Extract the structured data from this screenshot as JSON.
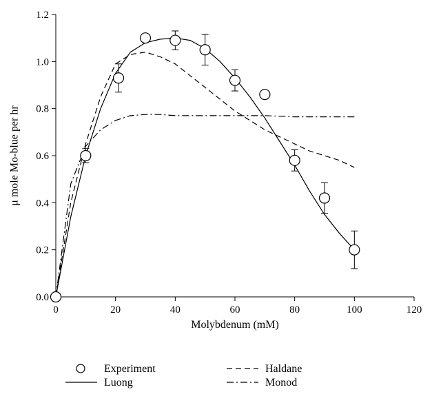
{
  "chart_data": {
    "type": "line",
    "title": "",
    "xlabel": "Molybdenum (mM)",
    "ylabel": "μ mole Mo-blue per hr",
    "xlim": [
      0,
      120
    ],
    "ylim": [
      0,
      1.2
    ],
    "xticks": [
      "0",
      "20",
      "40",
      "60",
      "80",
      "100",
      "120"
    ],
    "yticks": [
      "0.0",
      "0.2",
      "0.4",
      "0.6",
      "0.8",
      "1.0",
      "1.2"
    ],
    "grid": false,
    "legend_position": "bottom",
    "series": [
      {
        "name": "Experiment",
        "kind": "scatter-errorbar",
        "marker": "open-circle",
        "x": [
          0,
          10,
          21,
          30,
          40,
          50,
          60,
          70,
          80,
          90,
          100
        ],
        "y": [
          0.0,
          0.6,
          0.93,
          1.1,
          1.09,
          1.05,
          0.92,
          0.86,
          0.58,
          0.42,
          0.2
        ],
        "err": [
          0,
          0.03,
          0.06,
          0.01,
          0.04,
          0.065,
          0.045,
          0,
          0.045,
          0.065,
          0.08
        ]
      },
      {
        "name": "Luong",
        "kind": "line",
        "dash": "solid",
        "x": [
          0,
          5,
          10,
          15,
          20,
          25,
          30,
          35,
          40,
          45,
          50,
          55,
          60,
          65,
          70,
          75,
          80,
          85,
          90,
          95,
          100
        ],
        "y": [
          0.0,
          0.34,
          0.6,
          0.8,
          0.95,
          1.04,
          1.08,
          1.095,
          1.1,
          1.09,
          1.055,
          1.0,
          0.93,
          0.85,
          0.76,
          0.66,
          0.56,
          0.45,
          0.35,
          0.27,
          0.2
        ]
      },
      {
        "name": "Haldane",
        "kind": "line",
        "dash": "dashed",
        "x": [
          0,
          5,
          10,
          15,
          20,
          25,
          30,
          35,
          40,
          45,
          50,
          55,
          60,
          65,
          70,
          75,
          80,
          85,
          90,
          95,
          100
        ],
        "y": [
          0.0,
          0.4,
          0.65,
          0.85,
          0.99,
          1.03,
          1.04,
          1.02,
          0.99,
          0.94,
          0.89,
          0.84,
          0.79,
          0.75,
          0.71,
          0.68,
          0.65,
          0.62,
          0.6,
          0.58,
          0.55
        ]
      },
      {
        "name": "Monod",
        "kind": "line",
        "dash": "dash-dot",
        "x": [
          0,
          5,
          10,
          15,
          20,
          25,
          30,
          35,
          40,
          50,
          60,
          70,
          80,
          90,
          100
        ],
        "y": [
          0.0,
          0.48,
          0.64,
          0.71,
          0.75,
          0.77,
          0.775,
          0.775,
          0.77,
          0.77,
          0.77,
          0.77,
          0.765,
          0.765,
          0.765
        ]
      }
    ]
  }
}
